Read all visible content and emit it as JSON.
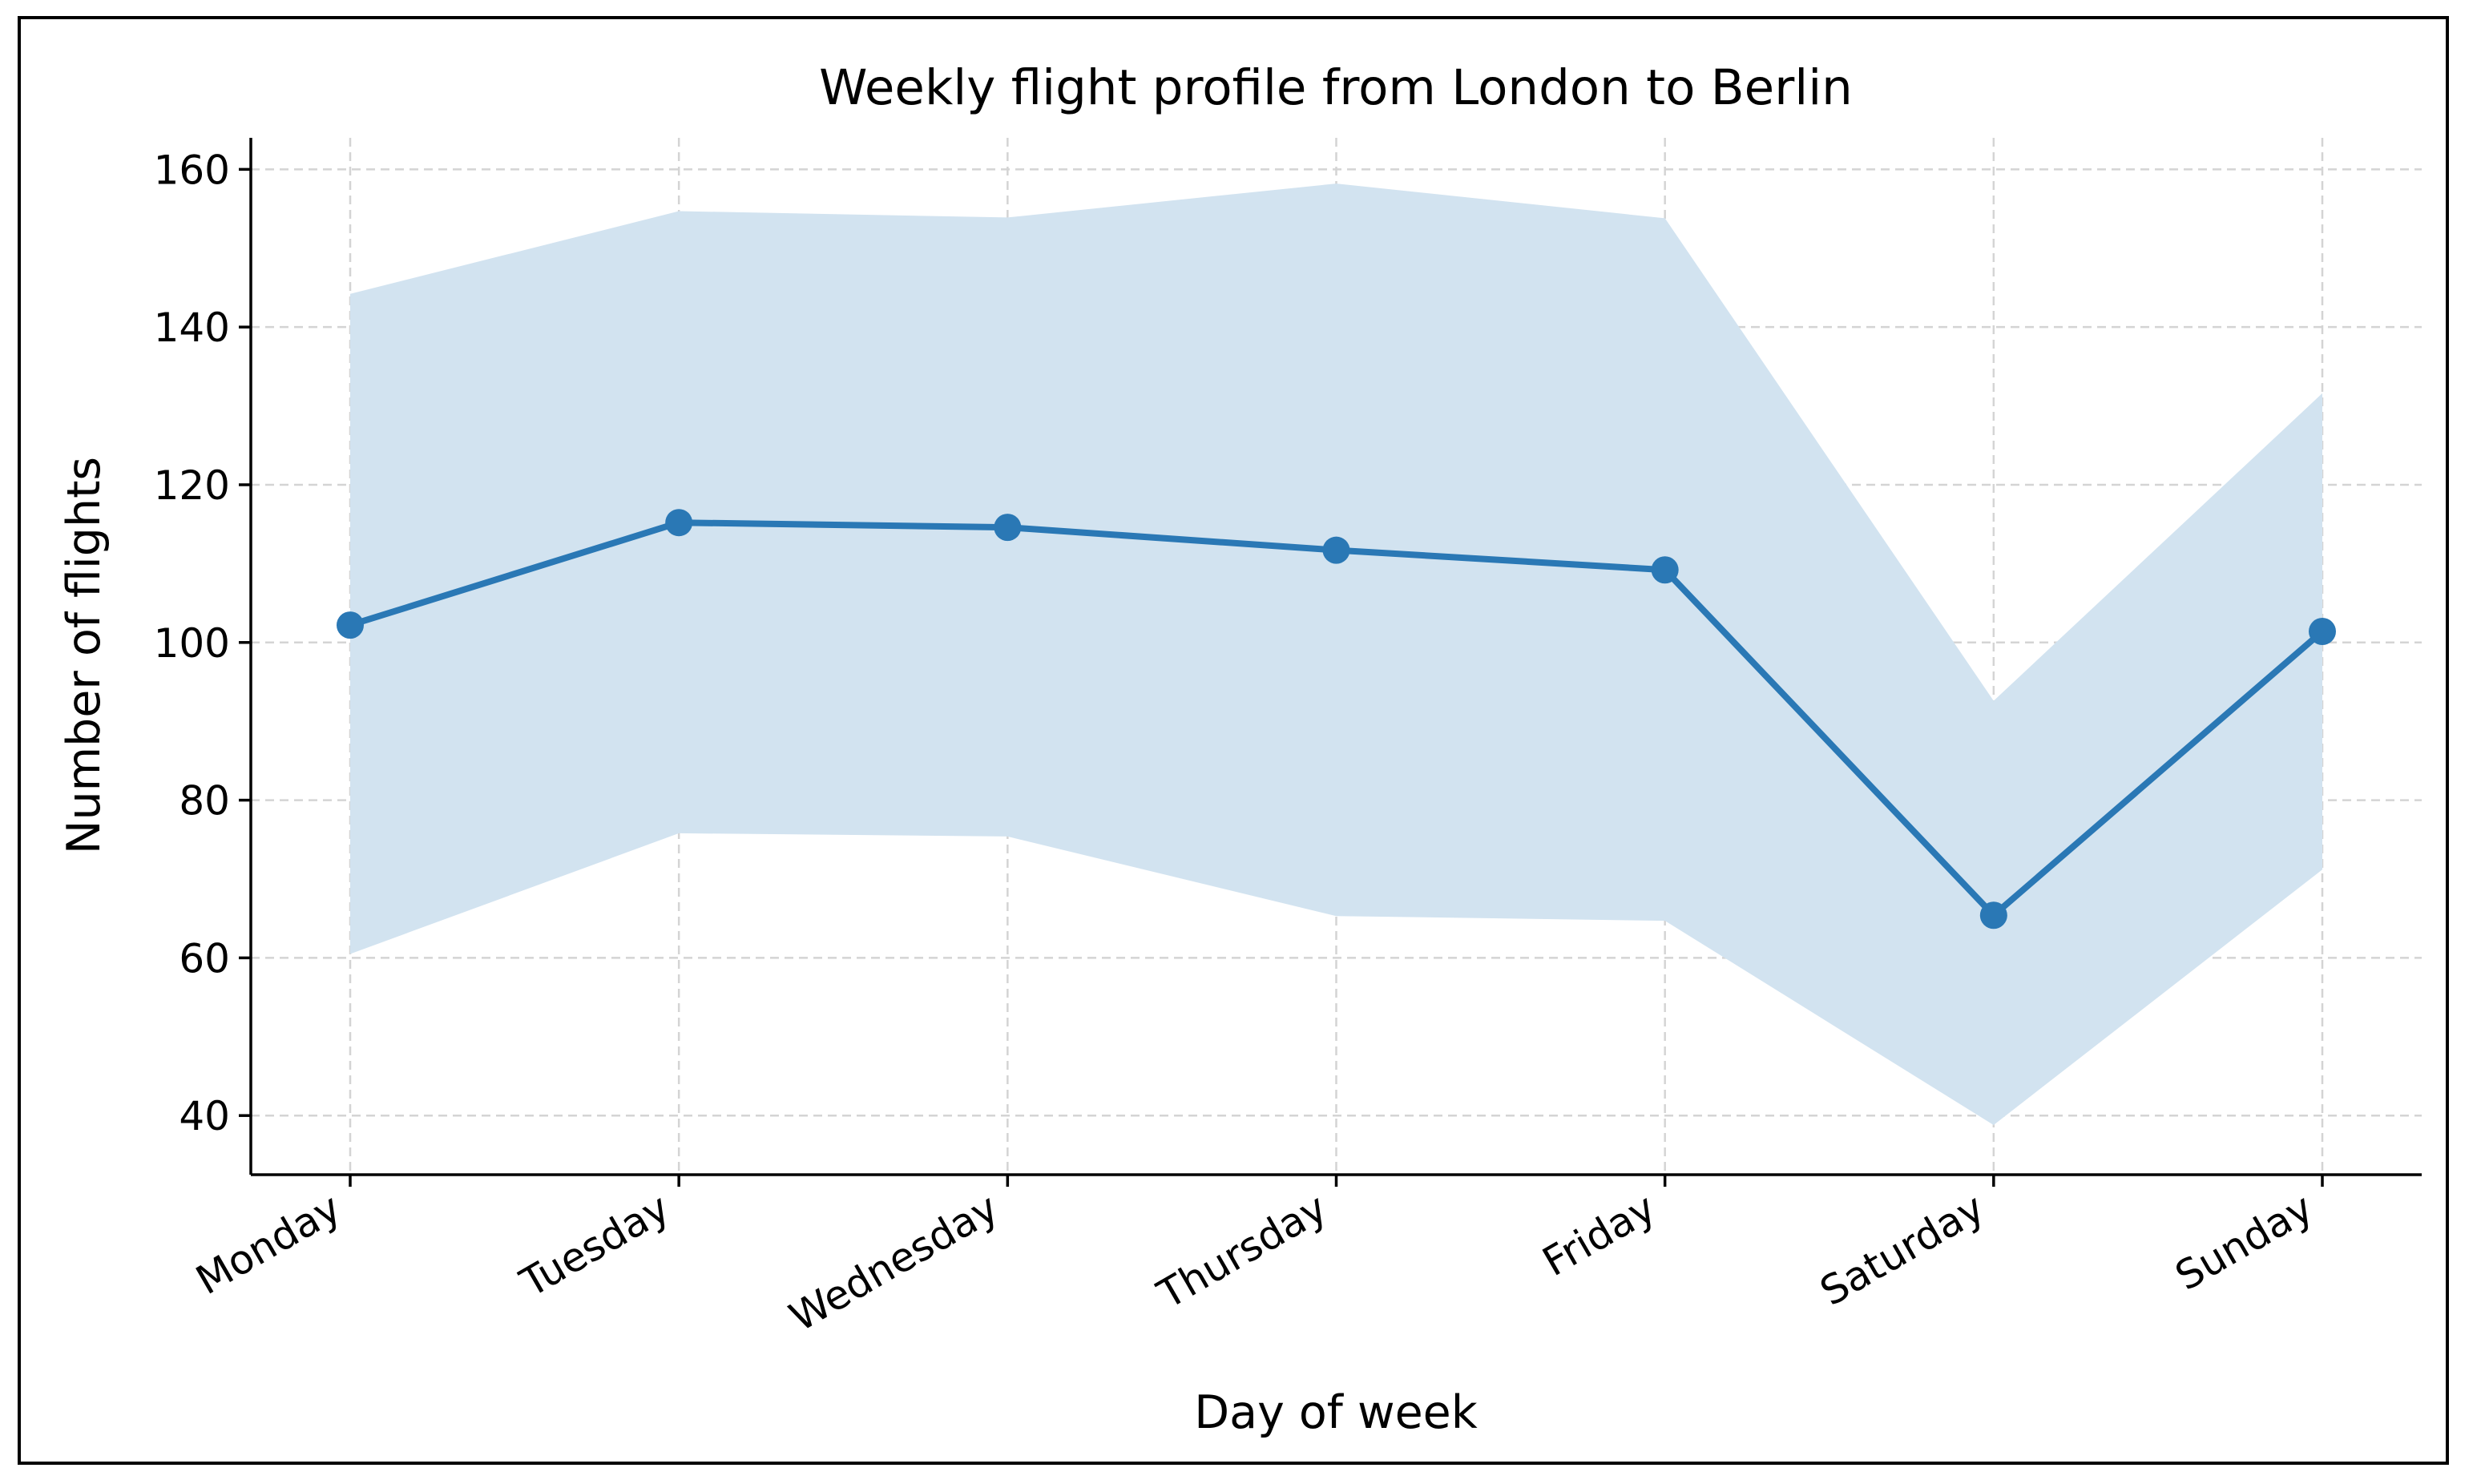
{
  "chart_data": {
    "type": "line",
    "title": "Weekly flight profile from London to Berlin",
    "xlabel": "Day of week",
    "ylabel": "Number of flights",
    "categories": [
      "Monday",
      "Tuesday",
      "Wednesday",
      "Thursday",
      "Friday",
      "Saturday",
      "Sunday"
    ],
    "series": [
      {
        "values": [
          102.2,
          115.2,
          114.6,
          111.7,
          109.2,
          65.4,
          101.4
        ],
        "lower": [
          60.5,
          75.8,
          75.4,
          65.3,
          64.7,
          38.8,
          71.2
        ],
        "upper": [
          144.2,
          154.7,
          153.9,
          158.2,
          153.8,
          92.6,
          131.6
        ]
      }
    ],
    "ylim": [
      32.5,
      164
    ],
    "yticks": [
      40,
      60,
      80,
      100,
      120,
      140,
      160
    ],
    "grid": true,
    "colors": {
      "line": "#2a78b5",
      "band": "#d2e3f0"
    }
  }
}
